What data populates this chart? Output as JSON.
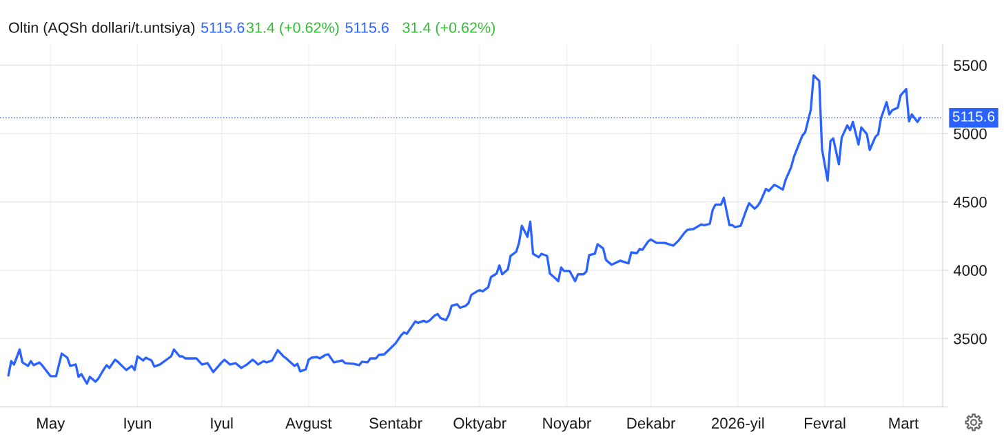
{
  "chart_data": {
    "type": "line",
    "title": "Oltin (AQSh dollari/t.untsiya)",
    "annotations": [
      "5115.6",
      "31.4 (+0.62%)",
      "5115.6",
      "31.4 (+0.62%)"
    ],
    "x": [
      "2025-04-16",
      "2025-04-17",
      "2025-04-18",
      "2025-04-20",
      "2025-04-21",
      "2025-04-23",
      "2025-04-24",
      "2025-04-25",
      "2025-04-27",
      "2025-04-28",
      "2025-05-01",
      "2025-05-03",
      "2025-05-05",
      "2025-05-07",
      "2025-05-08",
      "2025-05-10",
      "2025-05-11",
      "2025-05-12",
      "2025-05-14",
      "2025-05-15",
      "2025-05-17",
      "2025-05-18",
      "2025-05-20",
      "2025-05-21",
      "2025-05-22",
      "2025-05-24",
      "2025-05-25",
      "2025-05-27",
      "2025-05-28",
      "2025-05-30",
      "2025-05-31",
      "2025-06-01",
      "2025-06-03",
      "2025-06-04",
      "2025-06-06",
      "2025-06-07",
      "2025-06-09",
      "2025-06-13",
      "2025-06-14",
      "2025-06-16",
      "2025-06-17",
      "2025-06-18",
      "2025-06-22",
      "2025-06-24",
      "2025-06-26",
      "2025-06-28",
      "2025-07-01",
      "2025-07-02",
      "2025-07-04",
      "2025-07-06",
      "2025-07-08",
      "2025-07-10",
      "2025-07-12",
      "2025-07-13",
      "2025-07-14",
      "2025-07-16",
      "2025-07-17",
      "2025-07-19",
      "2025-07-21",
      "2025-07-23",
      "2025-07-24",
      "2025-07-27",
      "2025-07-28",
      "2025-07-29",
      "2025-07-31",
      "2025-08-01",
      "2025-08-02",
      "2025-08-04",
      "2025-08-05",
      "2025-08-07",
      "2025-08-08",
      "2025-08-10",
      "2025-08-11",
      "2025-08-13",
      "2025-08-14",
      "2025-08-17",
      "2025-08-19",
      "2025-08-20",
      "2025-08-22",
      "2025-08-23",
      "2025-08-25",
      "2025-08-26",
      "2025-08-28",
      "2025-08-29",
      "2025-09-01",
      "2025-09-03",
      "2025-09-04",
      "2025-09-05",
      "2025-09-08",
      "2025-09-09",
      "2025-09-11",
      "2025-09-12",
      "2025-09-13",
      "2025-09-15",
      "2025-09-16",
      "2025-09-17",
      "2025-09-19",
      "2025-09-20",
      "2025-09-21",
      "2025-09-23",
      "2025-09-24",
      "2025-09-26",
      "2025-09-27",
      "2025-09-28",
      "2025-09-30",
      "2025-10-01",
      "2025-10-02",
      "2025-10-04",
      "2025-10-05",
      "2025-10-07",
      "2025-10-08",
      "2025-10-09",
      "2025-10-11",
      "2025-10-12",
      "2025-10-14",
      "2025-10-15",
      "2025-10-16",
      "2025-10-18",
      "2025-10-19",
      "2025-10-20",
      "2025-10-22",
      "2025-10-23",
      "2025-10-25",
      "2025-10-26",
      "2025-10-28",
      "2025-10-29",
      "2025-10-30",
      "2025-10-31",
      "2025-11-02",
      "2025-11-04",
      "2025-11-05",
      "2025-11-07",
      "2025-11-08",
      "2025-11-09",
      "2025-11-11",
      "2025-11-12",
      "2025-11-14",
      "2025-11-15",
      "2025-11-17",
      "2025-11-19",
      "2025-11-20",
      "2025-11-23",
      "2025-11-24",
      "2025-11-26",
      "2025-11-27",
      "2025-11-28",
      "2025-11-30",
      "2025-12-01",
      "2025-12-03",
      "2025-12-06",
      "2025-12-09",
      "2025-12-10",
      "2025-12-11",
      "2025-12-13",
      "2025-12-14",
      "2025-12-16",
      "2025-12-19",
      "2025-12-20",
      "2025-12-22",
      "2025-12-23",
      "2025-12-24",
      "2025-12-26",
      "2025-12-27",
      "2025-12-29",
      "2025-12-30",
      "2025-12-31",
      "2026-01-02",
      "2026-01-04",
      "2026-01-05",
      "2026-01-07",
      "2026-01-08",
      "2026-01-09",
      "2026-01-11",
      "2026-01-12",
      "2026-01-14",
      "2026-01-15",
      "2026-01-17",
      "2026-01-18",
      "2026-01-20",
      "2026-01-21",
      "2026-01-23",
      "2026-01-24",
      "2026-01-25",
      "2026-01-27",
      "2026-01-28",
      "2026-01-30",
      "2026-01-31",
      "2026-02-02",
      "2026-02-03",
      "2026-02-04",
      "2026-02-06",
      "2026-02-07",
      "2026-02-09",
      "2026-02-10",
      "2026-02-11",
      "2026-02-13",
      "2026-02-14",
      "2026-02-16",
      "2026-02-17",
      "2026-02-19",
      "2026-02-20",
      "2026-02-21",
      "2026-02-23",
      "2026-02-24",
      "2026-02-25",
      "2026-02-27",
      "2026-02-28",
      "2026-03-02",
      "2026-03-03",
      "2026-03-04",
      "2026-03-06",
      "2026-03-07"
    ],
    "series": [
      {
        "color": "#2962ff",
        "values": [
          3230,
          3335,
          3310,
          3420,
          3325,
          3300,
          3335,
          3305,
          3325,
          3305,
          3225,
          3225,
          3390,
          3360,
          3300,
          3310,
          3220,
          3240,
          3170,
          3220,
          3185,
          3205,
          3275,
          3305,
          3285,
          3345,
          3330,
          3290,
          3270,
          3300,
          3270,
          3370,
          3340,
          3360,
          3340,
          3295,
          3310,
          3370,
          3420,
          3370,
          3370,
          3355,
          3355,
          3310,
          3320,
          3255,
          3325,
          3345,
          3310,
          3320,
          3285,
          3310,
          3345,
          3330,
          3310,
          3335,
          3325,
          3340,
          3415,
          3370,
          3355,
          3300,
          3315,
          3260,
          3275,
          3345,
          3360,
          3365,
          3355,
          3380,
          3385,
          3325,
          3330,
          3340,
          3320,
          3315,
          3305,
          3330,
          3325,
          3355,
          3355,
          3380,
          3385,
          3405,
          3465,
          3525,
          3545,
          3535,
          3625,
          3615,
          3630,
          3620,
          3630,
          3670,
          3680,
          3650,
          3635,
          3675,
          3740,
          3750,
          3725,
          3740,
          3760,
          3820,
          3845,
          3855,
          3845,
          3875,
          3950,
          3975,
          4035,
          3970,
          4005,
          4105,
          4135,
          4200,
          4325,
          4245,
          4355,
          4120,
          4095,
          4120,
          4105,
          3975,
          3940,
          3920,
          4020,
          3995,
          3995,
          3920,
          3970,
          3970,
          3990,
          4110,
          4120,
          4190,
          4160,
          4075,
          4040,
          4060,
          4070,
          4050,
          4130,
          4125,
          4155,
          4150,
          4210,
          4225,
          4200,
          4200,
          4180,
          4200,
          4220,
          4275,
          4295,
          4300,
          4335,
          4330,
          4340,
          4440,
          4480,
          4480,
          4530,
          4330,
          4330,
          4315,
          4325,
          4440,
          4490,
          4450,
          4470,
          4500,
          4595,
          4580,
          4625,
          4615,
          4590,
          4660,
          4755,
          4830,
          4935,
          4985,
          5010,
          5175,
          5425,
          5385,
          4885,
          4655,
          4945,
          4965,
          4775,
          4970,
          5060,
          5025,
          5085,
          4920,
          5045,
          4995,
          4880,
          4975,
          4995,
          5110,
          5230,
          5140,
          5170,
          5190,
          5280,
          5325,
          5090,
          5140,
          5085,
          5115.6
        ]
      }
    ],
    "xlim": [
      "2025-04-13",
      "2026-03-15"
    ],
    "ylim": [
      3000,
      5650
    ],
    "xticks": [
      {
        "value": "2025-05-01",
        "label": "May"
      },
      {
        "value": "2025-06-01",
        "label": "Iyun"
      },
      {
        "value": "2025-07-01",
        "label": "Iyul"
      },
      {
        "value": "2025-08-01",
        "label": "Avgust"
      },
      {
        "value": "2025-09-01",
        "label": "Sentabr"
      },
      {
        "value": "2025-10-01",
        "label": "Oktyabr"
      },
      {
        "value": "2025-11-01",
        "label": "Noyabr"
      },
      {
        "value": "2025-12-01",
        "label": "Dekabr"
      },
      {
        "value": "2026-01-01",
        "label": "2026-yil"
      },
      {
        "value": "2026-02-01",
        "label": "Fevral"
      },
      {
        "value": "2026-03-01",
        "label": "Mart"
      }
    ],
    "yticks": [
      {
        "value": 3000,
        "label": null
      },
      3500,
      4000,
      4500,
      5000,
      5500
    ],
    "grid": true,
    "ref_lines": [
      {
        "axis": "y",
        "value": 5115.6,
        "label": "5115.6",
        "color": "#2962ff",
        "line_style": "dotted"
      }
    ]
  }
}
